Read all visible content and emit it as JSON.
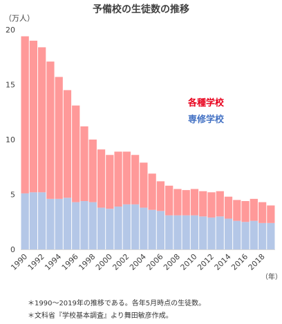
{
  "chart_data": {
    "type": "bar",
    "stacked": true,
    "title": "予備校の生徒数の推移",
    "ylabel": "（万人）",
    "xlabel": "（年）",
    "ylim": [
      0,
      20
    ],
    "y_ticks": [
      0,
      5,
      10,
      15,
      20
    ],
    "x": [
      1990,
      1991,
      1992,
      1993,
      1994,
      1995,
      1996,
      1997,
      1998,
      1999,
      2000,
      2001,
      2002,
      2003,
      2004,
      2005,
      2006,
      2007,
      2008,
      2009,
      2010,
      2011,
      2012,
      2013,
      2014,
      2015,
      2016,
      2017,
      2018,
      2019
    ],
    "x_tick_labels": [
      "1990",
      "1992",
      "1994",
      "1996",
      "1998",
      "2000",
      "2002",
      "2004",
      "2006",
      "2008",
      "2010",
      "2012",
      "2014",
      "2016",
      "2018"
    ],
    "grid": false,
    "legend_placement": "right",
    "series": [
      {
        "name": "専修学校",
        "color": "#B4C7E7",
        "legend_color": "#4472C4",
        "values": [
          5.1,
          5.2,
          5.2,
          4.6,
          4.6,
          4.7,
          4.3,
          4.4,
          4.3,
          3.8,
          3.7,
          3.9,
          4.1,
          4.1,
          3.8,
          3.6,
          3.5,
          3.1,
          3.1,
          3.1,
          3.1,
          3.0,
          2.9,
          3.0,
          2.8,
          2.6,
          2.5,
          2.6,
          2.4,
          2.4
        ]
      },
      {
        "name": "各種学校",
        "color": "#FF9999",
        "legend_color": "#E8001C",
        "values": [
          14.3,
          13.8,
          13.2,
          12.5,
          11.1,
          9.8,
          8.8,
          6.8,
          5.7,
          5.3,
          4.9,
          5.0,
          4.8,
          4.5,
          4.1,
          3.3,
          2.7,
          2.7,
          2.4,
          2.3,
          2.4,
          2.3,
          2.3,
          2.3,
          2.0,
          1.9,
          1.9,
          2.0,
          1.9,
          1.6
        ]
      }
    ]
  },
  "notes": [
    "＊1990～2019年の推移である。各年5月時点の生徒数。",
    "＊文科省『学校基本調査』より舞田敏彦作成。"
  ]
}
